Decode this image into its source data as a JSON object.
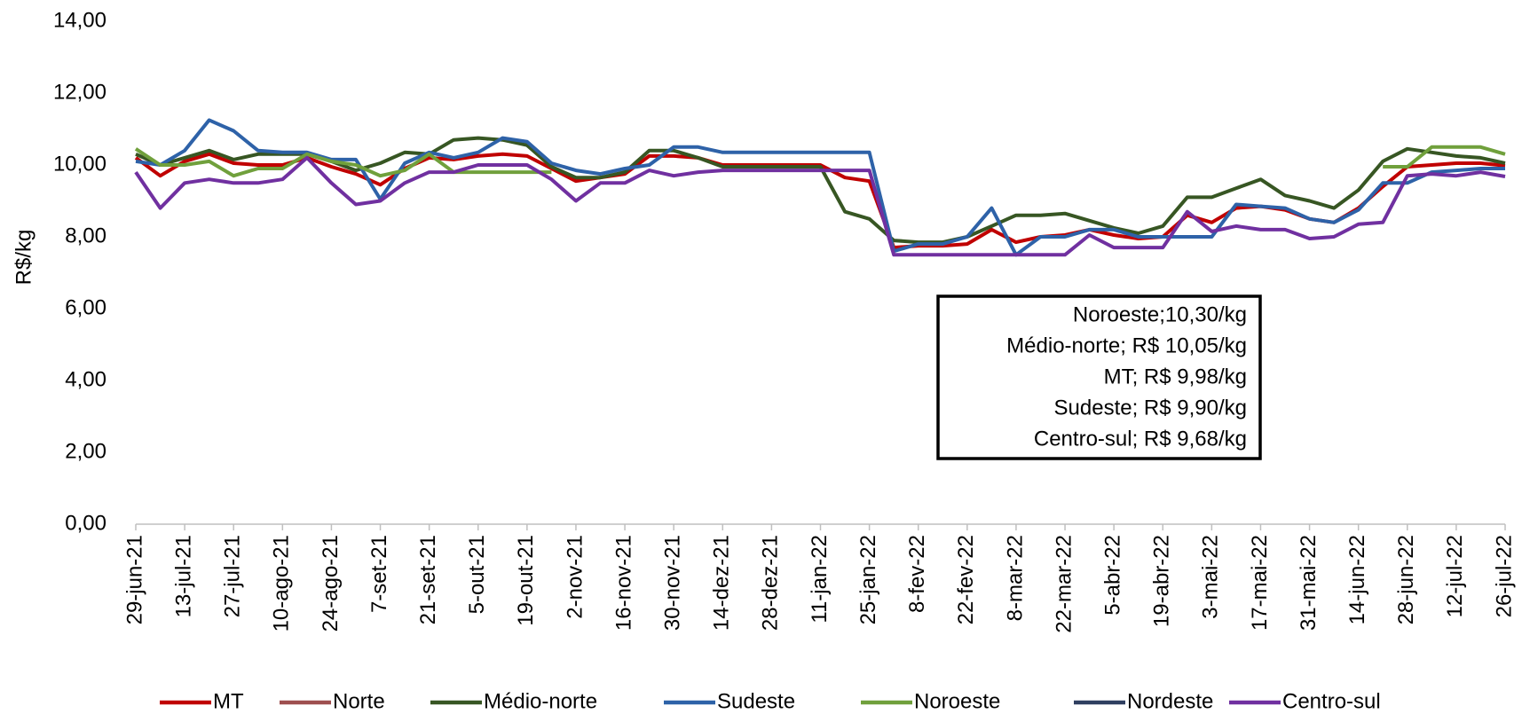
{
  "chart_data": {
    "type": "line",
    "y_label": "R$/kg",
    "categories": [
      "29-jun-21",
      null,
      "13-jul-21",
      null,
      "27-jul-21",
      null,
      "10-ago-21",
      null,
      "24-ago-21",
      null,
      "7-set-21",
      null,
      "21-set-21",
      null,
      "5-out-21",
      null,
      "19-out-21",
      null,
      "2-nov-21",
      null,
      "16-nov-21",
      null,
      "30-nov-21",
      null,
      "14-dez-21",
      null,
      "28-dez-21",
      null,
      "11-jan-22",
      null,
      "25-jan-22",
      null,
      "8-fev-22",
      null,
      "22-fev-22",
      null,
      "8-mar-22",
      null,
      "22-mar-22",
      null,
      "5-abr-22",
      null,
      "19-abr-22",
      null,
      "3-mai-22",
      null,
      "17-mai-22",
      null,
      "31-mai-22",
      null,
      "14-jun-22",
      null,
      "28-jun-22",
      null,
      "12-jul-22",
      null,
      "26-jul-22"
    ],
    "series": [
      {
        "name": "MT",
        "color": "#c00000",
        "values": [
          10.2,
          9.7,
          10.1,
          10.3,
          10.05,
          10.0,
          10.0,
          10.2,
          9.95,
          9.75,
          9.45,
          9.9,
          10.2,
          10.15,
          10.25,
          10.3,
          10.25,
          9.9,
          9.55,
          9.65,
          9.75,
          10.25,
          10.25,
          10.2,
          10.0,
          10.0,
          10.0,
          10.0,
          10.0,
          9.65,
          9.55,
          7.7,
          7.75,
          7.75,
          7.8,
          8.2,
          7.85,
          8.0,
          8.05,
          8.2,
          8.05,
          7.95,
          8.0,
          8.6,
          8.4,
          8.8,
          8.85,
          8.75,
          8.5,
          8.4,
          8.8,
          9.4,
          9.95,
          10.0,
          10.05,
          10.05,
          9.98
        ]
      },
      {
        "name": "Norte",
        "color": "#9e4f4f",
        "values": [
          null,
          null,
          null,
          null,
          null,
          null,
          null,
          null,
          null,
          null,
          null,
          null,
          null,
          null,
          null,
          null,
          null,
          null,
          null,
          null,
          null,
          null,
          null,
          null,
          null,
          null,
          null,
          null,
          null,
          null,
          null,
          null,
          null,
          null,
          null,
          null,
          null,
          null,
          null,
          null,
          null,
          null,
          null,
          null,
          null,
          null,
          null,
          null,
          null,
          null,
          null,
          null,
          null,
          null,
          null,
          null,
          null
        ]
      },
      {
        "name": "Médio-norte",
        "color": "#375623",
        "values": [
          10.3,
          10.0,
          10.2,
          10.4,
          10.15,
          10.3,
          10.3,
          10.3,
          10.1,
          9.85,
          10.05,
          10.35,
          10.3,
          10.7,
          10.75,
          10.7,
          10.55,
          9.95,
          9.65,
          9.65,
          9.8,
          10.4,
          10.4,
          10.2,
          9.95,
          9.95,
          9.95,
          9.95,
          9.95,
          8.7,
          8.5,
          7.9,
          7.85,
          7.85,
          8.0,
          8.3,
          8.6,
          8.6,
          8.65,
          8.45,
          8.25,
          8.1,
          8.3,
          9.1,
          9.1,
          9.35,
          9.6,
          9.15,
          9.0,
          8.8,
          9.3,
          10.1,
          10.45,
          10.35,
          10.25,
          10.2,
          10.05
        ]
      },
      {
        "name": "Sudeste",
        "color": "#2e62a8",
        "values": [
          10.1,
          10.0,
          10.4,
          11.25,
          10.95,
          10.4,
          10.35,
          10.35,
          10.15,
          10.15,
          9.05,
          10.05,
          10.35,
          10.2,
          10.35,
          10.75,
          10.65,
          10.05,
          9.85,
          9.75,
          9.9,
          10.0,
          10.5,
          10.5,
          10.35,
          10.35,
          10.35,
          10.35,
          10.35,
          10.35,
          10.35,
          7.6,
          7.8,
          7.8,
          8.0,
          8.8,
          7.5,
          8.0,
          8.0,
          8.2,
          8.2,
          8.0,
          8.0,
          8.0,
          8.0,
          8.9,
          8.85,
          8.8,
          8.5,
          8.4,
          8.75,
          9.5,
          9.5,
          9.8,
          9.85,
          9.9,
          9.9
        ]
      },
      {
        "name": "Noroeste",
        "color": "#70a03c",
        "values": [
          10.45,
          10.0,
          10.0,
          10.1,
          9.7,
          9.9,
          9.9,
          10.3,
          10.1,
          10.0,
          9.7,
          9.85,
          10.3,
          9.8,
          9.8,
          9.8,
          9.8,
          9.8,
          null,
          null,
          null,
          null,
          null,
          null,
          null,
          null,
          null,
          null,
          null,
          null,
          null,
          null,
          null,
          null,
          null,
          null,
          null,
          null,
          null,
          null,
          null,
          null,
          null,
          null,
          null,
          null,
          null,
          null,
          null,
          null,
          null,
          9.95,
          9.95,
          10.5,
          10.5,
          10.5,
          10.3
        ]
      },
      {
        "name": "Nordeste",
        "color": "#2f3f60",
        "values": [
          null,
          null,
          null,
          null,
          null,
          null,
          null,
          null,
          null,
          null,
          null,
          null,
          null,
          null,
          null,
          null,
          null,
          null,
          null,
          null,
          null,
          null,
          null,
          null,
          null,
          null,
          null,
          null,
          null,
          null,
          null,
          null,
          null,
          null,
          null,
          null,
          null,
          null,
          null,
          null,
          null,
          null,
          null,
          null,
          null,
          null,
          null,
          null,
          null,
          null,
          null,
          null,
          null,
          null,
          null,
          null,
          null
        ]
      },
      {
        "name": "Centro-sul",
        "color": "#7030a0",
        "values": [
          9.8,
          8.8,
          9.5,
          9.6,
          9.5,
          9.5,
          9.6,
          10.2,
          9.5,
          8.9,
          9.0,
          9.5,
          9.8,
          9.8,
          10.0,
          10.0,
          10.0,
          9.6,
          9.0,
          9.5,
          9.5,
          9.85,
          9.7,
          9.8,
          9.85,
          9.85,
          9.85,
          9.85,
          9.85,
          9.85,
          9.85,
          7.5,
          7.5,
          7.5,
          7.5,
          7.5,
          7.5,
          7.5,
          7.5,
          8.05,
          7.7,
          7.7,
          7.7,
          8.7,
          8.15,
          8.3,
          8.2,
          8.2,
          7.95,
          8.0,
          8.35,
          8.4,
          9.7,
          9.75,
          9.7,
          9.8,
          9.68
        ]
      }
    ],
    "ylim": [
      0,
      14
    ],
    "yticks": [
      {
        "value": 0,
        "label": "0,00"
      },
      {
        "value": 2,
        "label": "2,00"
      },
      {
        "value": 4,
        "label": "4,00"
      },
      {
        "value": 6,
        "label": "6,00"
      },
      {
        "value": 8,
        "label": "8,00"
      },
      {
        "value": 10,
        "label": "10,00"
      },
      {
        "value": 12,
        "label": "12,00"
      },
      {
        "value": 14,
        "label": "14,00"
      }
    ],
    "grid": false,
    "legend": "bottom",
    "annotations": [
      "Noroeste;10,30/kg",
      "Médio-norte; R$ 10,05/kg",
      "MT; R$ 9,98/kg",
      "Sudeste; R$ 9,90/kg",
      "Centro-sul; R$ 9,68/kg"
    ]
  }
}
